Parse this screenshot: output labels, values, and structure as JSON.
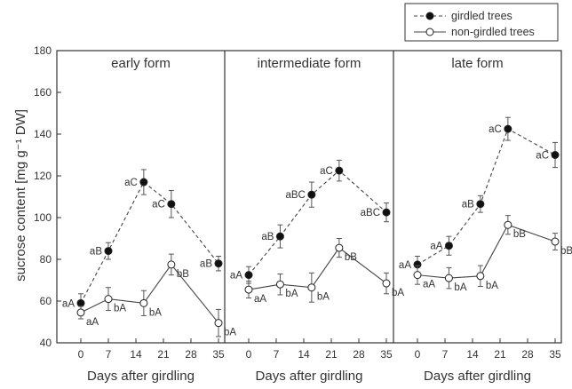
{
  "chart_data": {
    "type": "line",
    "ylabel": "sucrose content [mg g⁻¹ DW]",
    "xlabel": "Days after girdling",
    "ylim": [
      40,
      180
    ],
    "yticks": [
      40,
      60,
      80,
      100,
      120,
      140,
      160,
      180
    ],
    "xticks": [
      0,
      7,
      14,
      21,
      28,
      35
    ],
    "legend": {
      "placement": "top-right",
      "entries": [
        {
          "name": "girdled trees",
          "marker": "filled-circle",
          "line": "dashed"
        },
        {
          "name": "non-girdled trees",
          "marker": "open-circle",
          "line": "solid"
        }
      ]
    },
    "panels": [
      {
        "title": "early form",
        "series": [
          {
            "name": "girdled trees",
            "x": [
              0,
              7,
              16,
              23,
              35
            ],
            "y": [
              59,
              84,
              117,
              106.5,
              78
            ],
            "err": [
              4.5,
              4,
              6,
              6.5,
              3.5
            ],
            "labels": [
              "aA",
              "aB",
              "aC",
              "aC",
              "aB"
            ]
          },
          {
            "name": "non-girdled trees",
            "x": [
              0,
              7,
              16,
              23,
              35
            ],
            "y": [
              54.5,
              61,
              59,
              77.5,
              49.5
            ],
            "err": [
              3,
              5.5,
              6,
              5,
              6.5
            ],
            "labels": [
              "aA",
              "bA",
              "bA",
              "bB",
              "bA"
            ]
          }
        ]
      },
      {
        "title": "intermediate form",
        "series": [
          {
            "name": "girdled trees",
            "x": [
              0,
              8,
              16,
              23,
              35
            ],
            "y": [
              72.5,
              91,
              111,
              122.5,
              102.5
            ],
            "err": [
              4,
              5.5,
              6,
              5,
              4.5
            ],
            "labels": [
              "aA",
              "aB",
              "aBC",
              "aC",
              "aBC"
            ]
          },
          {
            "name": "non-girdled trees",
            "x": [
              0,
              8,
              16,
              23,
              35
            ],
            "y": [
              65.5,
              68,
              66.5,
              85.5,
              68.5
            ],
            "err": [
              4,
              5,
              7,
              4.5,
              5
            ],
            "labels": [
              "aA",
              "bA",
              "bA",
              "bB",
              "bA"
            ]
          }
        ]
      },
      {
        "title": "late form",
        "series": [
          {
            "name": "girdled trees",
            "x": [
              0,
              8,
              16,
              23,
              35
            ],
            "y": [
              77.5,
              86.5,
              106.5,
              142.5,
              130
            ],
            "err": [
              4,
              4.5,
              4,
              5.5,
              6
            ],
            "labels": [
              "aA",
              "aA",
              "aB",
              "aC",
              "aC"
            ]
          },
          {
            "name": "non-girdled trees",
            "x": [
              0,
              8,
              16,
              23,
              35
            ],
            "y": [
              72.5,
              71,
              72,
              96.5,
              88.5
            ],
            "err": [
              4.5,
              5,
              5,
              4.5,
              4
            ],
            "labels": [
              "aA",
              "bA",
              "bA",
              "bB",
              "bB"
            ]
          }
        ]
      }
    ]
  }
}
